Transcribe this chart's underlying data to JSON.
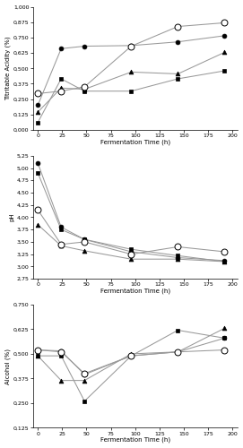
{
  "x": [
    0,
    24,
    48,
    96,
    144,
    192
  ],
  "panel_a": {
    "ylabel": "Titritable Acidity (%)",
    "ylim": [
      0.0,
      1.0
    ],
    "yticks": [
      0.0,
      0.125,
      0.25,
      0.375,
      0.5,
      0.625,
      0.75,
      0.875,
      1.0
    ],
    "ytick_labels": [
      "0,000",
      "0,125",
      "0,250",
      "0,375",
      "0,500",
      "0,625",
      "0,750",
      "0,875",
      "1,000"
    ],
    "rice": [
      0.06,
      0.415,
      0.315,
      0.315,
      0.415,
      0.48
    ],
    "maize": [
      0.145,
      0.34,
      0.33,
      0.47,
      0.455,
      0.63
    ],
    "millet": [
      0.2,
      0.66,
      0.68,
      0.685,
      0.715,
      0.765
    ],
    "wheat": [
      0.295,
      0.315,
      0.35,
      0.68,
      0.84,
      0.87
    ]
  },
  "panel_b": {
    "ylabel": "pH",
    "ylim": [
      2.75,
      5.25
    ],
    "yticks": [
      2.75,
      3.0,
      3.25,
      3.5,
      3.75,
      4.0,
      4.25,
      4.5,
      4.75,
      5.0,
      5.25
    ],
    "ytick_labels": [
      "2,75",
      "3,00",
      "3,25",
      "3,50",
      "3,75",
      "4,00",
      "4,25",
      "4,50",
      "4,75",
      "5,00",
      "5,25"
    ],
    "rice": [
      4.9,
      3.75,
      3.55,
      3.35,
      3.22,
      3.1
    ],
    "maize": [
      3.85,
      3.42,
      3.32,
      3.15,
      3.15,
      3.1
    ],
    "millet": [
      5.1,
      3.8,
      3.55,
      3.3,
      3.18,
      3.12
    ],
    "wheat": [
      4.15,
      3.45,
      3.5,
      3.25,
      3.4,
      3.3
    ]
  },
  "panel_c": {
    "ylabel": "Alcohol (%)",
    "ylim": [
      0.125,
      0.75
    ],
    "yticks": [
      0.125,
      0.25,
      0.375,
      0.5,
      0.625,
      0.75
    ],
    "ytick_labels": [
      "0,125",
      "0,250",
      "0,375",
      "0,500",
      "0,625",
      "0,750"
    ],
    "rice": [
      0.49,
      0.49,
      0.26,
      0.49,
      0.62,
      0.58
    ],
    "maize": [
      0.49,
      0.365,
      0.365,
      0.5,
      0.51,
      0.63
    ],
    "millet": [
      0.52,
      0.515,
      0.395,
      0.49,
      0.51,
      0.58
    ],
    "wheat": [
      0.52,
      0.51,
      0.4,
      0.49,
      0.51,
      0.52
    ]
  },
  "xlabel": "Fermentation Time (h)",
  "xticks": [
    0,
    25,
    50,
    75,
    100,
    125,
    150,
    175,
    200
  ],
  "line_color": "#999999",
  "markersize": 3.5,
  "linewidth": 0.75
}
